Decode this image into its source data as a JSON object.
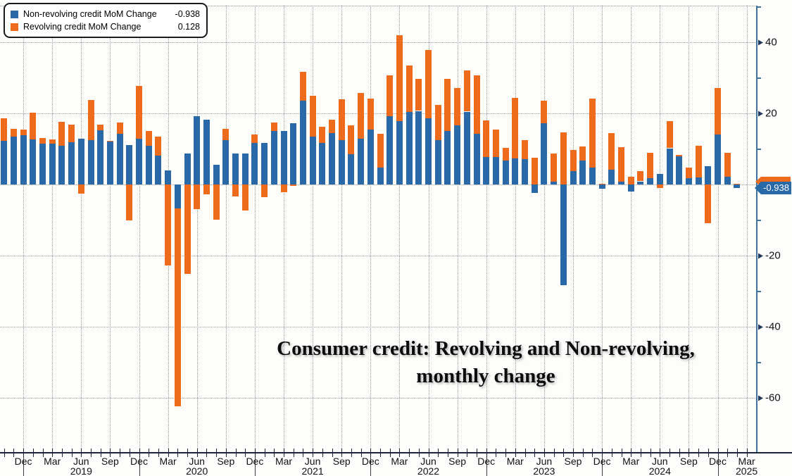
{
  "title": {
    "line1": "Consumer credit: Revolving and Non-revolving,",
    "line2": "monthly change"
  },
  "legend": {
    "items": [
      {
        "label": "Non-revolving credit MoM Change",
        "value": "-0.938",
        "color": "#2a69a8"
      },
      {
        "label": "Revolving credit MoM Change",
        "value": "0.128",
        "color": "#ee6a1c"
      }
    ]
  },
  "axis_tag": {
    "nonrevolving_value": "-0.938"
  },
  "colors": {
    "nonrevolving": "#2a69a8",
    "revolving": "#ee6a1c",
    "right_axis": "#41729c",
    "bottom_axis": "#1b2537",
    "gridline": "#9a9a9a",
    "tag_text": "#ffffff"
  },
  "y_axis": {
    "major_ticks": [
      {
        "value": 40,
        "label": "40"
      },
      {
        "value": 20,
        "label": "20"
      },
      {
        "value": -20,
        "label": "-20"
      },
      {
        "value": -40,
        "label": "-40"
      },
      {
        "value": -60,
        "label": "-60"
      }
    ],
    "minor_tick_values": [
      50,
      30,
      10,
      -10,
      -30,
      -50
    ],
    "gridline_values": [
      40,
      20,
      0,
      -20,
      -40,
      -60
    ]
  },
  "x_axis": {
    "quarter_ticks": [
      {
        "idx": 2,
        "label": "Dec"
      },
      {
        "idx": 5,
        "label": "Mar"
      },
      {
        "idx": 8,
        "label": "Jun"
      },
      {
        "idx": 11,
        "label": "Sep"
      },
      {
        "idx": 14,
        "label": "Dec"
      },
      {
        "idx": 17,
        "label": "Mar"
      },
      {
        "idx": 20,
        "label": "Jun"
      },
      {
        "idx": 23,
        "label": "Sep"
      },
      {
        "idx": 26,
        "label": "Dec"
      },
      {
        "idx": 29,
        "label": "Mar"
      },
      {
        "idx": 32,
        "label": "Jun"
      },
      {
        "idx": 35,
        "label": "Sep"
      },
      {
        "idx": 38,
        "label": "Dec"
      },
      {
        "idx": 41,
        "label": "Mar"
      },
      {
        "idx": 44,
        "label": "Jun"
      },
      {
        "idx": 47,
        "label": "Sep"
      },
      {
        "idx": 50,
        "label": "Dec"
      },
      {
        "idx": 53,
        "label": "Mar"
      },
      {
        "idx": 56,
        "label": "Jun"
      },
      {
        "idx": 59,
        "label": "Sep"
      },
      {
        "idx": 62,
        "label": "Dec"
      },
      {
        "idx": 65,
        "label": "Mar"
      },
      {
        "idx": 68,
        "label": "Jun"
      },
      {
        "idx": 71,
        "label": "Sep"
      },
      {
        "idx": 74,
        "label": "Dec"
      },
      {
        "idx": 77,
        "label": "Mar"
      }
    ],
    "year_labels": [
      {
        "idx": 8,
        "label": "2019"
      },
      {
        "idx": 20,
        "label": "2020"
      },
      {
        "idx": 32,
        "label": "2021"
      },
      {
        "idx": 44,
        "label": "2022"
      },
      {
        "idx": 56,
        "label": "2023"
      },
      {
        "idx": 68,
        "label": "2024"
      },
      {
        "idx": 77,
        "label": "2025"
      }
    ],
    "year_divider_idx": [
      2,
      14,
      26,
      38,
      50,
      62,
      74
    ]
  },
  "chart_data": {
    "type": "bar",
    "stacked": true,
    "title": "Consumer credit: Revolving and Non-revolving, monthly change",
    "ylim": [
      -66,
      50
    ],
    "grid": "dotted",
    "legend_position": "top-left",
    "x": [
      "2018-10",
      "2018-11",
      "2018-12",
      "2019-01",
      "2019-02",
      "2019-03",
      "2019-04",
      "2019-05",
      "2019-06",
      "2019-07",
      "2019-08",
      "2019-09",
      "2019-10",
      "2019-11",
      "2019-12",
      "2020-01",
      "2020-02",
      "2020-03",
      "2020-04",
      "2020-05",
      "2020-06",
      "2020-07",
      "2020-08",
      "2020-09",
      "2020-10",
      "2020-11",
      "2020-12",
      "2021-01",
      "2021-02",
      "2021-03",
      "2021-04",
      "2021-05",
      "2021-06",
      "2021-07",
      "2021-08",
      "2021-09",
      "2021-10",
      "2021-11",
      "2021-12",
      "2022-01",
      "2022-02",
      "2022-03",
      "2022-04",
      "2022-05",
      "2022-06",
      "2022-07",
      "2022-08",
      "2022-09",
      "2022-10",
      "2022-11",
      "2022-12",
      "2023-01",
      "2023-02",
      "2023-03",
      "2023-04",
      "2023-05",
      "2023-06",
      "2023-07",
      "2023-08",
      "2023-09",
      "2023-10",
      "2023-11",
      "2023-12",
      "2024-01",
      "2024-02",
      "2024-03",
      "2024-04",
      "2024-05",
      "2024-06",
      "2024-07",
      "2024-08",
      "2024-09",
      "2024-10",
      "2024-11",
      "2024-12",
      "2025-01",
      "2025-02"
    ],
    "series": [
      {
        "name": "Non-revolving credit MoM Change",
        "color": "#2a69a8",
        "values": [
          12.2,
          13.5,
          13.9,
          12.7,
          11.5,
          11.5,
          10.9,
          11.8,
          12.9,
          12.5,
          15.3,
          12.0,
          14.2,
          11.0,
          12.8,
          10.9,
          8.2,
          3.9,
          -6.8,
          8.7,
          19.3,
          18.3,
          5.6,
          12.5,
          8.7,
          8.7,
          11.7,
          11.7,
          15.0,
          15.0,
          17.3,
          23.6,
          13.5,
          11.7,
          14.5,
          12.5,
          8.5,
          12.9,
          15.5,
          4.8,
          19.3,
          17.8,
          20.4,
          20.7,
          18.6,
          12.5,
          15.1,
          16.7,
          20.5,
          14.3,
          7.7,
          7.7,
          6.8,
          7.4,
          7.2,
          -2.4,
          17.3,
          0.8,
          -28.4,
          3.8,
          6.8,
          4.8,
          -1.2,
          4.1,
          0.8,
          -2.0,
          0.9,
          1.8,
          2.9,
          10.2,
          7.9,
          1.8,
          1.9,
          5.2,
          14.0,
          2.1,
          -0.938
        ]
      },
      {
        "name": "Revolving credit MoM Change",
        "color": "#ee6a1c",
        "values": [
          6.4,
          2.2,
          1.6,
          7.6,
          1.5,
          1.2,
          6.7,
          5.0,
          -2.5,
          11.3,
          1.5,
          0.3,
          3.3,
          -10.1,
          15.0,
          4.1,
          5.3,
          -22.8,
          -55.6,
          -25.1,
          -7.0,
          -2.7,
          -9.8,
          3.2,
          -3.3,
          -7.4,
          2.3,
          -3.5,
          2.5,
          -2.2,
          -0.3,
          8.0,
          11.5,
          4.5,
          3.7,
          11.4,
          8.2,
          12.8,
          8.6,
          9.4,
          11.5,
          24.1,
          13.1,
          9.0,
          19.3,
          9.9,
          14.7,
          10.4,
          11.5,
          16.5,
          10.4,
          7.8,
          3.6,
          17.0,
          5.2,
          7.5,
          6.3,
          8.0,
          14.7,
          6.0,
          3.9,
          19.3,
          0.3,
          10.4,
          9.7,
          2.1,
          2.9,
          7.1,
          -1.0,
          7.6,
          0.4,
          3.0,
          9.0,
          -10.8,
          13.2,
          6.9,
          0.128
        ]
      }
    ]
  }
}
